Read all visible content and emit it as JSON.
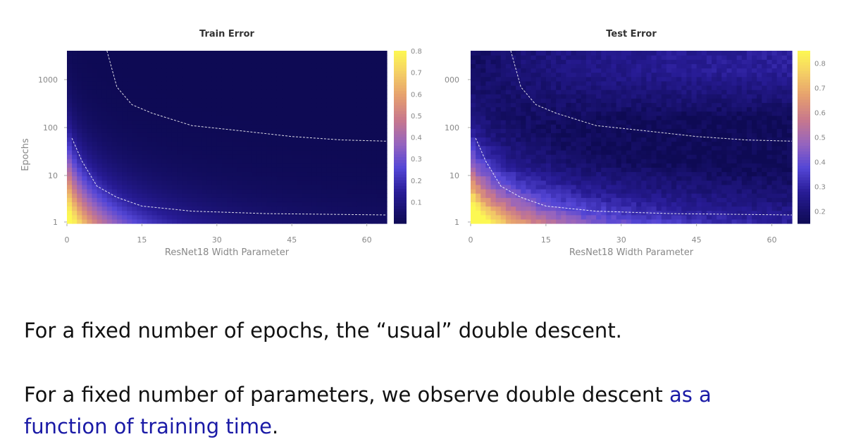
{
  "chart_data": [
    {
      "type": "heatmap",
      "title": "Train Error",
      "xlabel": "ResNet18 Width Parameter",
      "ylabel": "Epochs",
      "x_ticks": [
        0,
        15,
        30,
        45,
        60
      ],
      "y_ticks": [
        "1",
        "10",
        "100",
        "1000"
      ],
      "y_scale": "log",
      "xlim": [
        0,
        64
      ],
      "colorbar_ticks": [
        "0.8",
        "0.7",
        "0.6",
        "0.5",
        "0.4",
        "0.3",
        "0.2",
        "0.1"
      ],
      "colorbar_range": [
        0.0,
        0.8
      ],
      "contours": [
        {
          "level": "high",
          "points": [
            [
              1,
              60
            ],
            [
              3,
              20
            ],
            [
              6,
              6
            ],
            [
              10,
              3.5
            ],
            [
              15,
              2.3
            ],
            [
              25,
              1.8
            ],
            [
              40,
              1.6
            ],
            [
              64,
              1.5
            ]
          ]
        },
        {
          "level": "low",
          "points": [
            [
              8,
              4000
            ],
            [
              10,
              700
            ],
            [
              13,
              300
            ],
            [
              17,
              200
            ],
            [
              25,
              110
            ],
            [
              35,
              85
            ],
            [
              45,
              65
            ],
            [
              55,
              55
            ],
            [
              64,
              52
            ]
          ]
        }
      ]
    },
    {
      "type": "heatmap",
      "title": "Test Error",
      "xlabel": "ResNet18 Width Parameter",
      "ylabel": "",
      "x_ticks": [
        0,
        15,
        30,
        45,
        60
      ],
      "y_ticks": [
        "1",
        "10",
        "100",
        "000"
      ],
      "y_scale": "log",
      "xlim": [
        0,
        64
      ],
      "colorbar_ticks": [
        "0.8",
        "0.7",
        "0.6",
        "0.5",
        "0.4",
        "0.3",
        "0.2"
      ],
      "colorbar_range": [
        0.15,
        0.85
      ],
      "contours": [
        {
          "level": "high",
          "points": [
            [
              1,
              60
            ],
            [
              3,
              20
            ],
            [
              6,
              6
            ],
            [
              10,
              3.5
            ],
            [
              15,
              2.3
            ],
            [
              25,
              1.8
            ],
            [
              40,
              1.6
            ],
            [
              64,
              1.5
            ]
          ]
        },
        {
          "level": "low",
          "points": [
            [
              8,
              4000
            ],
            [
              10,
              700
            ],
            [
              13,
              300
            ],
            [
              17,
              200
            ],
            [
              25,
              110
            ],
            [
              35,
              85
            ],
            [
              45,
              65
            ],
            [
              55,
              55
            ],
            [
              64,
              52
            ]
          ]
        }
      ]
    }
  ],
  "text": {
    "line1": "For a fixed number of epochs, the “usual” double descent.",
    "line2": "For a fixed number of parameters, we observe double descent ",
    "line2_highlight": "as a",
    "line3_highlight": "function of training time",
    "line3_end": "."
  }
}
